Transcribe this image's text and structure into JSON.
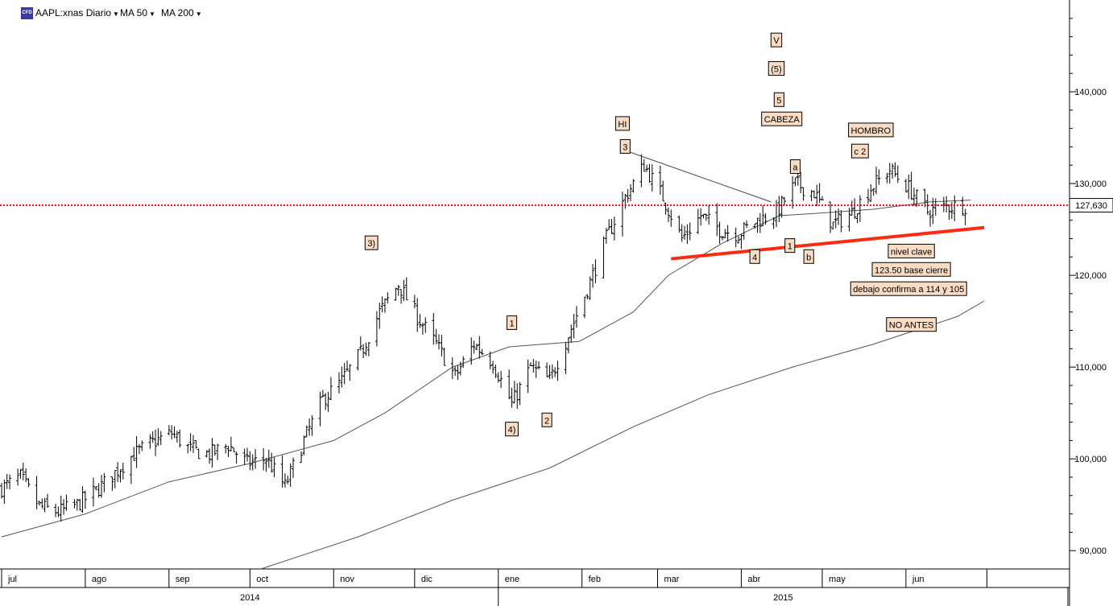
{
  "toolbar": {
    "logo_text": "CFD",
    "symbol_label": "AAPL:xnas Diario",
    "ma50_label": "MA 50",
    "ma200_label": "MA 200",
    "caret_icon": "caret-down-icon"
  },
  "colors": {
    "price_bars": "#000000",
    "moving_averages": "#555555",
    "trendline_red": "#ff2a12",
    "dotted_line_red": "#ff0000",
    "label_fill": "#f8dcc4",
    "price_tag_fill": "#ffffff"
  },
  "chart_data": {
    "type": "ohlc",
    "y_axis": {
      "min": 88,
      "max": 150,
      "ticks": [
        90,
        100,
        110,
        120,
        130,
        140
      ],
      "tick_labels": [
        "90,000",
        "100,000",
        "110,000",
        "120,000",
        "130,000",
        "140,000"
      ],
      "position": "right"
    },
    "x_axis": {
      "start": "2014-07-01",
      "end": "2015-07-31",
      "months": [
        {
          "label": "jul",
          "date": "2014-07-01"
        },
        {
          "label": "ago",
          "date": "2014-08-01"
        },
        {
          "label": "sep",
          "date": "2014-09-01"
        },
        {
          "label": "oct",
          "date": "2014-10-01"
        },
        {
          "label": "nov",
          "date": "2014-11-01"
        },
        {
          "label": "dic",
          "date": "2014-12-01"
        },
        {
          "label": "ene",
          "date": "2015-01-01"
        },
        {
          "label": "feb",
          "date": "2015-02-01"
        },
        {
          "label": "mar",
          "date": "2015-03-01"
        },
        {
          "label": "abr",
          "date": "2015-04-01"
        },
        {
          "label": "may",
          "date": "2015-05-01"
        },
        {
          "label": "jun",
          "date": "2015-06-01"
        },
        {
          "label": "",
          "date": "2015-07-01"
        }
      ],
      "years": [
        {
          "label": "2014",
          "from": "2014-07-01",
          "to": "2015-01-01"
        },
        {
          "label": "2015",
          "from": "2015-01-01",
          "to": "2015-07-31"
        }
      ]
    },
    "price_points": [
      [
        "2014-07-01",
        96.8
      ],
      [
        "2014-07-08",
        98.0
      ],
      [
        "2014-07-15",
        94.8
      ],
      [
        "2014-07-22",
        94.2
      ],
      [
        "2014-07-29",
        95.0
      ],
      [
        "2014-08-05",
        96.5
      ],
      [
        "2014-08-12",
        98.5
      ],
      [
        "2014-08-19",
        100.5
      ],
      [
        "2014-08-26",
        101.8
      ],
      [
        "2014-09-02",
        102.8
      ],
      [
        "2014-09-09",
        101.0
      ],
      [
        "2014-09-16",
        100.5
      ],
      [
        "2014-09-23",
        101.5
      ],
      [
        "2014-09-30",
        99.5
      ],
      [
        "2014-10-07",
        100.0
      ],
      [
        "2014-10-14",
        97.0
      ],
      [
        "2014-10-21",
        102.0
      ],
      [
        "2014-10-28",
        106.5
      ],
      [
        "2014-11-04",
        108.5
      ],
      [
        "2014-11-11",
        111.5
      ],
      [
        "2014-11-18",
        116.0
      ],
      [
        "2014-11-25",
        119.0
      ],
      [
        "2014-12-02",
        115.5
      ],
      [
        "2014-12-09",
        112.5
      ],
      [
        "2014-12-16",
        109.0
      ],
      [
        "2014-12-23",
        112.5
      ],
      [
        "2014-12-30",
        110.5
      ],
      [
        "2015-01-06",
        106.0
      ],
      [
        "2015-01-13",
        110.0
      ],
      [
        "2015-01-20",
        108.5
      ],
      [
        "2015-01-27",
        113.5
      ],
      [
        "2015-02-03",
        118.5
      ],
      [
        "2015-02-10",
        124.0
      ],
      [
        "2015-02-17",
        128.5
      ],
      [
        "2015-02-24",
        132.0
      ],
      [
        "2015-03-03",
        128.5
      ],
      [
        "2015-03-10",
        124.0
      ],
      [
        "2015-03-17",
        126.5
      ],
      [
        "2015-03-24",
        125.0
      ],
      [
        "2015-03-31",
        124.5
      ],
      [
        "2015-04-07",
        126.0
      ],
      [
        "2015-04-14",
        126.8
      ],
      [
        "2015-04-21",
        130.0
      ],
      [
        "2015-04-28",
        129.0
      ],
      [
        "2015-05-05",
        125.5
      ],
      [
        "2015-05-12",
        126.8
      ],
      [
        "2015-05-19",
        129.5
      ],
      [
        "2015-05-26",
        131.5
      ],
      [
        "2015-06-02",
        129.5
      ],
      [
        "2015-06-09",
        127.0
      ],
      [
        "2015-06-16",
        127.5
      ],
      [
        "2015-06-23",
        127.6
      ]
    ],
    "ma50_points": [
      [
        "2014-07-01",
        91.5
      ],
      [
        "2014-08-01",
        94.0
      ],
      [
        "2014-09-01",
        97.5
      ],
      [
        "2014-10-01",
        99.5
      ],
      [
        "2014-11-01",
        102.0
      ],
      [
        "2014-11-20",
        105.0
      ],
      [
        "2014-12-15",
        110.0
      ],
      [
        "2015-01-05",
        112.2
      ],
      [
        "2015-01-31",
        112.8
      ],
      [
        "2015-02-20",
        116.0
      ],
      [
        "2015-03-05",
        120.0
      ],
      [
        "2015-03-25",
        123.5
      ],
      [
        "2015-04-15",
        126.5
      ],
      [
        "2015-05-01",
        126.8
      ],
      [
        "2015-05-20",
        127.2
      ],
      [
        "2015-06-10",
        128.0
      ],
      [
        "2015-06-25",
        128.2
      ]
    ],
    "ma200_points": [
      [
        "2014-10-05",
        88.0
      ],
      [
        "2014-11-10",
        91.5
      ],
      [
        "2014-12-15",
        95.5
      ],
      [
        "2015-01-20",
        99.0
      ],
      [
        "2015-02-20",
        103.5
      ],
      [
        "2015-03-20",
        107.0
      ],
      [
        "2015-04-20",
        110.0
      ],
      [
        "2015-05-20",
        112.5
      ],
      [
        "2015-06-20",
        115.5
      ],
      [
        "2015-06-30",
        117.2
      ]
    ],
    "trendlines": [
      {
        "name": "red-support",
        "from": [
          "2015-03-06",
          121.8
        ],
        "to": [
          "2015-06-30",
          125.2
        ]
      },
      {
        "name": "gray-resistance",
        "from": [
          "2015-02-18",
          133.5
        ],
        "to": [
          "2015-04-12",
          128.0
        ]
      }
    ],
    "horizontal_line": {
      "value": 127.63,
      "style": "dotted"
    },
    "last_price_tag": "127,630",
    "annotations": [
      {
        "text": "3)",
        "date": "2014-11-15",
        "price": 123.5
      },
      {
        "text": "1",
        "date": "2015-01-06",
        "price": 114.8
      },
      {
        "text": "4)",
        "date": "2015-01-06",
        "price": 103.2
      },
      {
        "text": "2",
        "date": "2015-01-19",
        "price": 104.2
      },
      {
        "text": "HI",
        "date": "2015-02-16",
        "price": 136.5
      },
      {
        "text": "3",
        "date": "2015-02-17",
        "price": 134.0
      },
      {
        "text": "4",
        "date": "2015-04-06",
        "price": 122.0
      },
      {
        "text": "V",
        "date": "2015-04-14",
        "price": 145.6
      },
      {
        "text": "(5)",
        "date": "2015-04-14",
        "price": 142.5
      },
      {
        "text": "5",
        "date": "2015-04-15",
        "price": 139.1
      },
      {
        "text": "CABEZA",
        "date": "2015-04-16",
        "price": 137.0
      },
      {
        "text": "a",
        "date": "2015-04-21",
        "price": 131.8
      },
      {
        "text": "1",
        "date": "2015-04-19",
        "price": 123.2
      },
      {
        "text": "b",
        "date": "2015-04-26",
        "price": 122.0
      },
      {
        "text": "HOMBRO",
        "date": "2015-05-19",
        "price": 135.8
      },
      {
        "text": "c 2",
        "date": "2015-05-15",
        "price": 133.5
      },
      {
        "text": "nivel clave",
        "date": "2015-06-03",
        "price": 122.6
      },
      {
        "text": "123.50 base cierre",
        "date": "2015-06-03",
        "price": 120.6
      },
      {
        "text": "debajo confirma a 114 y 105",
        "date": "2015-06-02",
        "price": 118.5
      },
      {
        "text": "NO ANTES",
        "date": "2015-06-03",
        "price": 114.6
      }
    ]
  }
}
